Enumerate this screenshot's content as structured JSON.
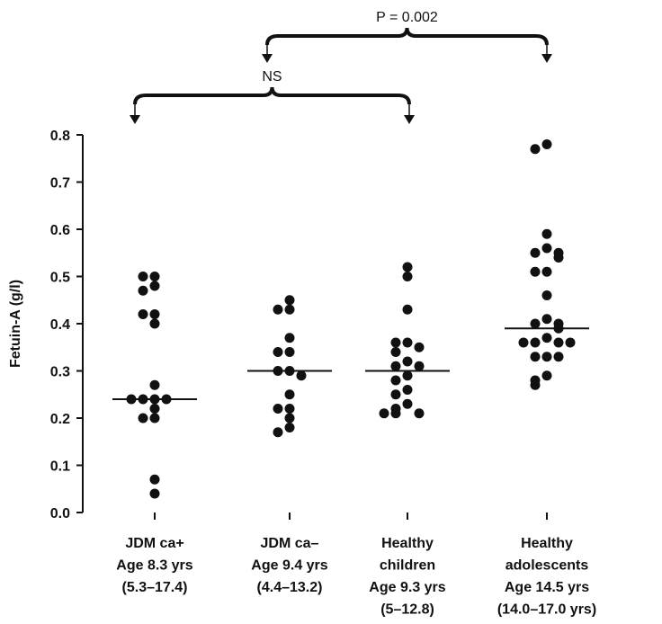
{
  "chart_data": {
    "type": "dot",
    "ylabel": "Fetuin-A (g/l)",
    "categories": [
      [
        "JDM ca+",
        "Age 8.3 yrs",
        "(5.3–17.4)"
      ],
      [
        "JDM ca–",
        "Age 9.4 yrs",
        "(4.4–13.2)"
      ],
      [
        "Healthy",
        "children",
        "Age 9.3 yrs",
        "(5–12.8)"
      ],
      [
        "Healthy",
        "adolescents",
        "Age 14.5 yrs",
        "(14.0–17.0 yrs)"
      ]
    ],
    "groups": [
      [
        0.5,
        0.5,
        0.48,
        0.47,
        0.42,
        0.42,
        0.4,
        0.27,
        0.24,
        0.24,
        0.24,
        0.24,
        0.22,
        0.2,
        0.2,
        0.07,
        0.04
      ],
      [
        0.45,
        0.43,
        0.43,
        0.37,
        0.34,
        0.34,
        0.3,
        0.3,
        0.29,
        0.25,
        0.22,
        0.22,
        0.2,
        0.18,
        0.17
      ],
      [
        0.52,
        0.5,
        0.43,
        0.36,
        0.36,
        0.35,
        0.34,
        0.32,
        0.31,
        0.31,
        0.29,
        0.28,
        0.26,
        0.25,
        0.23,
        0.22,
        0.21,
        0.21,
        0.21
      ],
      [
        0.78,
        0.77,
        0.59,
        0.56,
        0.55,
        0.55,
        0.54,
        0.51,
        0.51,
        0.46,
        0.41,
        0.4,
        0.4,
        0.39,
        0.37,
        0.36,
        0.36,
        0.36,
        0.36,
        0.33,
        0.33,
        0.33,
        0.29,
        0.28,
        0.27
      ]
    ],
    "medians": [
      0.24,
      0.3,
      0.3,
      0.39
    ],
    "color": "#111111",
    "annotations": [
      "NS",
      "P = 0.002"
    ],
    "ylim": [
      0,
      0.8
    ],
    "yticks": [
      {
        "value": 0,
        "label": "0.0"
      },
      0.1,
      0.2,
      0.3,
      0.4,
      0.5,
      0.6,
      0.7,
      0.8
    ]
  }
}
